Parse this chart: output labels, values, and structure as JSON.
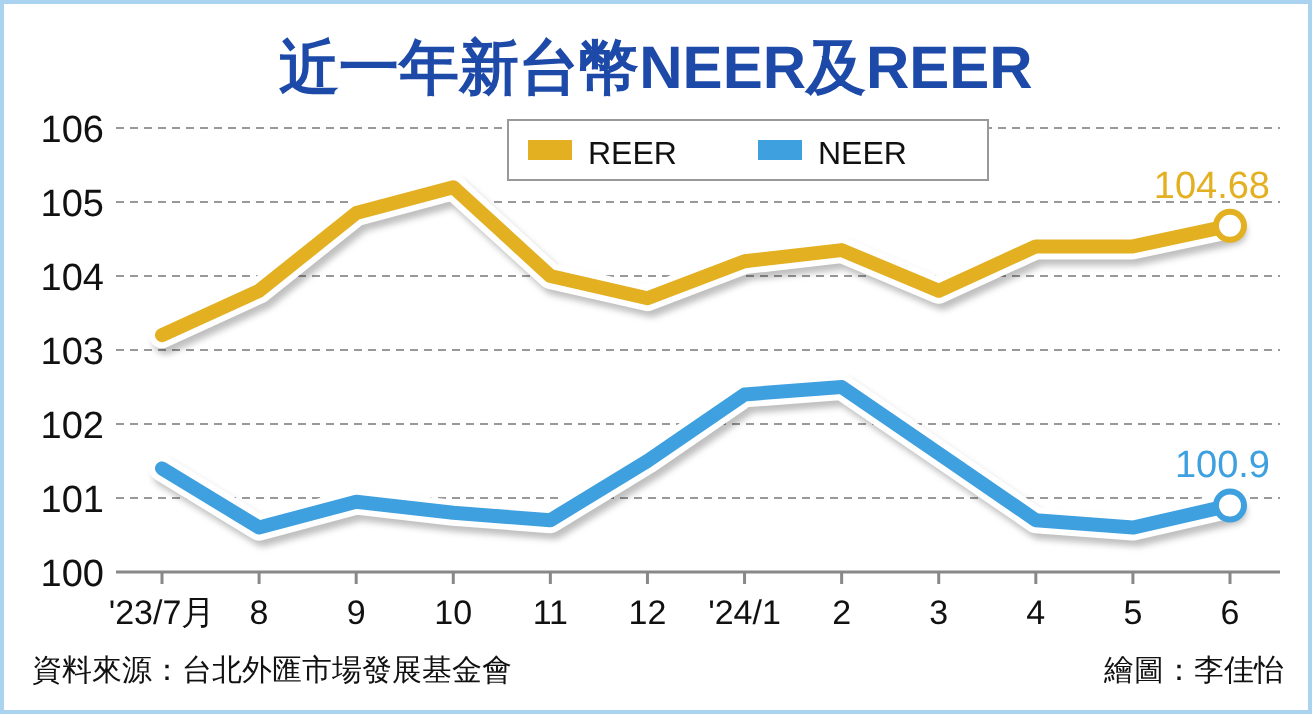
{
  "chart_data": {
    "type": "line",
    "title": "近一年新台幣NEER及REER",
    "categories": [
      "'23/7月",
      "8",
      "9",
      "10",
      "11",
      "12",
      "'24/1",
      "2",
      "3",
      "4",
      "5",
      "6"
    ],
    "series": [
      {
        "name": "REER",
        "color": "#e3b021",
        "values": [
          103.2,
          103.8,
          104.85,
          105.2,
          104.0,
          103.7,
          104.2,
          104.35,
          103.8,
          104.4,
          104.4,
          104.68
        ]
      },
      {
        "name": "NEER",
        "color": "#3fa0e0",
        "values": [
          101.4,
          100.6,
          100.95,
          100.8,
          100.7,
          101.5,
          102.4,
          102.5,
          101.6,
          100.7,
          100.6,
          100.9
        ]
      }
    ],
    "ylim": [
      100,
      106
    ],
    "yticks": [
      100,
      101,
      102,
      103,
      104,
      105,
      106
    ],
    "grid": "y",
    "legend": "top right",
    "annotations": [
      {
        "text": "104.68",
        "x": "6",
        "y": 104.68
      },
      {
        "text": "100.9",
        "x": "6",
        "y": 100.9
      },
      "資料來源：台北外匯市場發展基金會",
      "繪圖：李佳怡"
    ]
  }
}
